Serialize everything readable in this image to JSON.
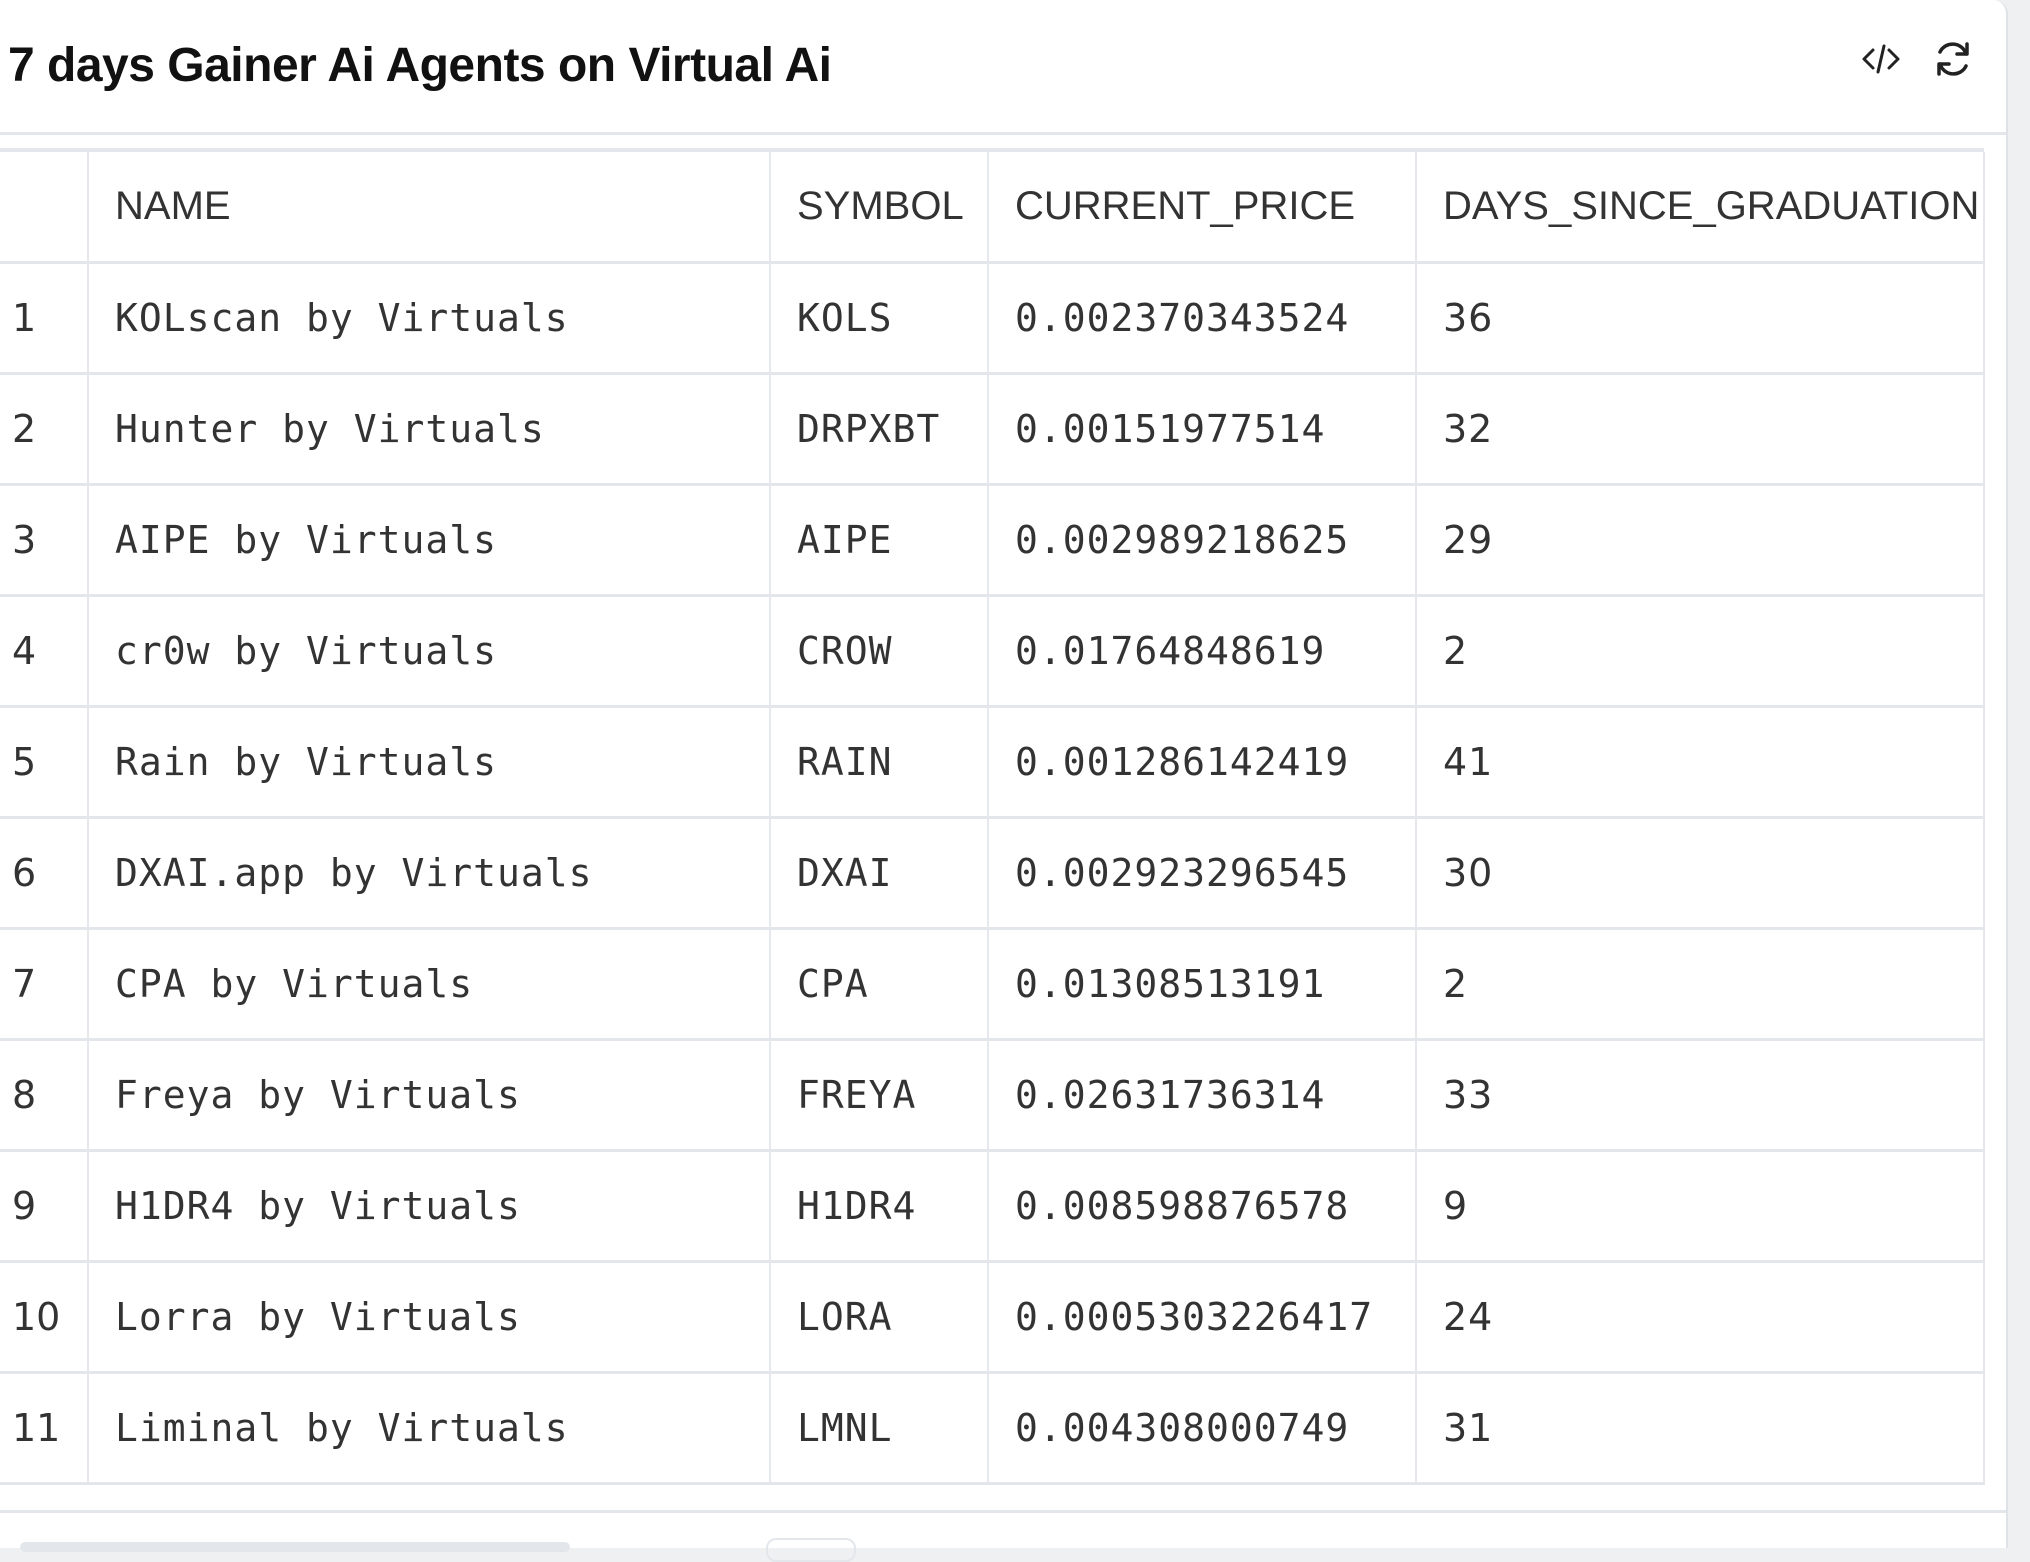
{
  "header": {
    "title": "7 days Gainer Ai Agents on Virtual Ai",
    "icons": [
      "code-icon",
      "refresh-icon"
    ]
  },
  "table": {
    "columns": [
      "",
      "NAME",
      "SYMBOL",
      "CURRENT_PRICE",
      "DAYS_SINCE_GRADUATION"
    ],
    "rows": [
      [
        "1",
        "KOLscan by Virtuals",
        "KOLS",
        "0.002370343524",
        "36"
      ],
      [
        "2",
        "Hunter by Virtuals",
        "DRPXBT",
        "0.00151977514",
        "32"
      ],
      [
        "3",
        "AIPE by Virtuals",
        "AIPE",
        "0.002989218625",
        "29"
      ],
      [
        "4",
        "cr0w by Virtuals",
        "CROW",
        "0.01764848619",
        "2"
      ],
      [
        "5",
        "Rain by Virtuals",
        "RAIN",
        "0.001286142419",
        "41"
      ],
      [
        "6",
        "DXAI.app by Virtuals",
        "DXAI",
        "0.002923296545",
        "30"
      ],
      [
        "7",
        "CPA by Virtuals",
        "CPA",
        "0.01308513191",
        "2"
      ],
      [
        "8",
        "Freya by Virtuals",
        "FREYA",
        "0.02631736314",
        "33"
      ],
      [
        "9",
        "H1DR4 by Virtuals",
        "H1DR4",
        "0.008598876578",
        "9"
      ],
      [
        "10",
        "Lorra by Virtuals",
        "LORA",
        "0.0005303226417",
        "24"
      ],
      [
        "11",
        "Liminal by Virtuals",
        "LMNL",
        "0.004308000749",
        "31"
      ]
    ]
  }
}
